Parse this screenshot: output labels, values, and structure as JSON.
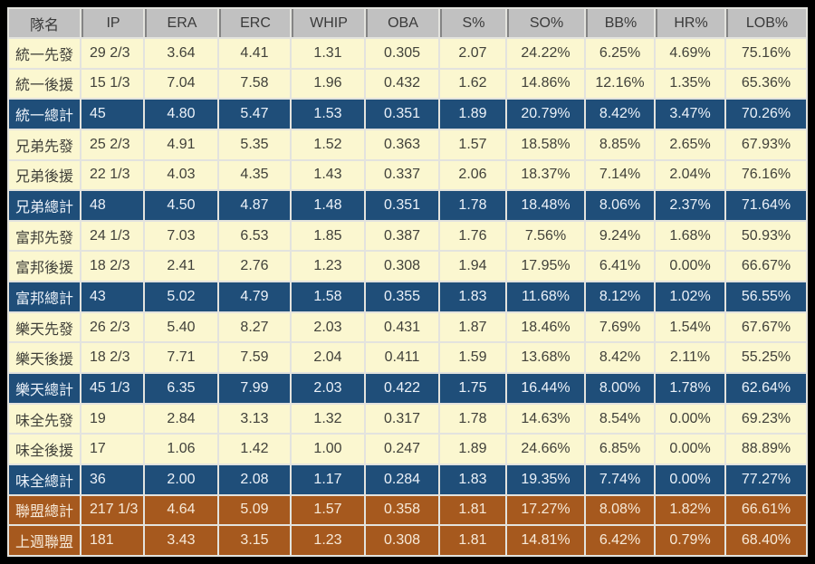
{
  "chart_data": {
    "type": "table",
    "title": "",
    "columns": [
      "隊名",
      "IP",
      "ERA",
      "ERC",
      "WHIP",
      "OBA",
      "S%",
      "SO%",
      "BB%",
      "HR%",
      "LOB%"
    ],
    "rows": [
      {
        "style": "starter",
        "cells": [
          "統一先發",
          "29 2/3",
          "3.64",
          "4.41",
          "1.31",
          "0.305",
          "2.07",
          "24.22%",
          "6.25%",
          "4.69%",
          "75.16%"
        ]
      },
      {
        "style": "reliever",
        "cells": [
          "統一後援",
          "15 1/3",
          "7.04",
          "7.58",
          "1.96",
          "0.432",
          "1.62",
          "14.86%",
          "12.16%",
          "1.35%",
          "65.36%"
        ]
      },
      {
        "style": "team-total",
        "cells": [
          "統一總計",
          "45",
          "4.80",
          "5.47",
          "1.53",
          "0.351",
          "1.89",
          "20.79%",
          "8.42%",
          "3.47%",
          "70.26%"
        ]
      },
      {
        "style": "starter",
        "cells": [
          "兄弟先發",
          "25 2/3",
          "4.91",
          "5.35",
          "1.52",
          "0.363",
          "1.57",
          "18.58%",
          "8.85%",
          "2.65%",
          "67.93%"
        ]
      },
      {
        "style": "reliever",
        "cells": [
          "兄弟後援",
          "22 1/3",
          "4.03",
          "4.35",
          "1.43",
          "0.337",
          "2.06",
          "18.37%",
          "7.14%",
          "2.04%",
          "76.16%"
        ]
      },
      {
        "style": "team-total",
        "cells": [
          "兄弟總計",
          "48",
          "4.50",
          "4.87",
          "1.48",
          "0.351",
          "1.78",
          "18.48%",
          "8.06%",
          "2.37%",
          "71.64%"
        ]
      },
      {
        "style": "starter",
        "cells": [
          "富邦先發",
          "24 1/3",
          "7.03",
          "6.53",
          "1.85",
          "0.387",
          "1.76",
          "7.56%",
          "9.24%",
          "1.68%",
          "50.93%"
        ]
      },
      {
        "style": "reliever",
        "cells": [
          "富邦後援",
          "18 2/3",
          "2.41",
          "2.76",
          "1.23",
          "0.308",
          "1.94",
          "17.95%",
          "6.41%",
          "0.00%",
          "66.67%"
        ]
      },
      {
        "style": "team-total",
        "cells": [
          "富邦總計",
          "43",
          "5.02",
          "4.79",
          "1.58",
          "0.355",
          "1.83",
          "11.68%",
          "8.12%",
          "1.02%",
          "56.55%"
        ]
      },
      {
        "style": "starter",
        "cells": [
          "樂天先發",
          "26 2/3",
          "5.40",
          "8.27",
          "2.03",
          "0.431",
          "1.87",
          "18.46%",
          "7.69%",
          "1.54%",
          "67.67%"
        ]
      },
      {
        "style": "reliever",
        "cells": [
          "樂天後援",
          "18 2/3",
          "7.71",
          "7.59",
          "2.04",
          "0.411",
          "1.59",
          "13.68%",
          "8.42%",
          "2.11%",
          "55.25%"
        ]
      },
      {
        "style": "team-total",
        "cells": [
          "樂天總計",
          "45 1/3",
          "6.35",
          "7.99",
          "2.03",
          "0.422",
          "1.75",
          "16.44%",
          "8.00%",
          "1.78%",
          "62.64%"
        ]
      },
      {
        "style": "starter",
        "cells": [
          "味全先發",
          "19",
          "2.84",
          "3.13",
          "1.32",
          "0.317",
          "1.78",
          "14.63%",
          "8.54%",
          "0.00%",
          "69.23%"
        ]
      },
      {
        "style": "reliever",
        "cells": [
          "味全後援",
          "17",
          "1.06",
          "1.42",
          "1.00",
          "0.247",
          "1.89",
          "24.66%",
          "6.85%",
          "0.00%",
          "88.89%"
        ]
      },
      {
        "style": "team-total",
        "cells": [
          "味全總計",
          "36",
          "2.00",
          "2.08",
          "1.17",
          "0.284",
          "1.83",
          "19.35%",
          "7.74%",
          "0.00%",
          "77.27%"
        ]
      },
      {
        "style": "league-total",
        "cells": [
          "聯盟總計",
          "217 1/3",
          "4.64",
          "5.09",
          "1.57",
          "0.358",
          "1.81",
          "17.27%",
          "8.08%",
          "1.82%",
          "66.61%"
        ]
      },
      {
        "style": "league-prev",
        "cells": [
          "上週聯盟",
          "181",
          "3.43",
          "3.15",
          "1.23",
          "0.308",
          "1.81",
          "14.81%",
          "6.42%",
          "0.79%",
          "68.40%"
        ]
      }
    ]
  },
  "colors": {
    "header_bg": "#C1C1C1",
    "row_bg": "#FBF7D0",
    "team_total_bg": "#1F4E79",
    "league_bg": "#A6591E",
    "grid": "#E3E3DE",
    "frame": "#000000"
  }
}
